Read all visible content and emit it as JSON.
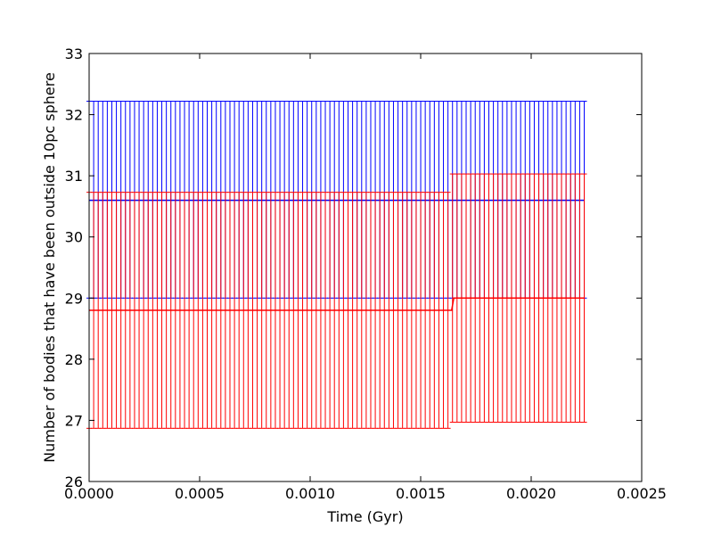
{
  "chart_data": {
    "type": "line",
    "title": "",
    "xlabel": "Time (Gyr)",
    "ylabel": "Number of bodies that have been outside 10pc sphere",
    "xlim": [
      0.0,
      0.0025
    ],
    "ylim": [
      26,
      33
    ],
    "xticks": [
      "0.0000",
      "0.0005",
      "0.0010",
      "0.0015",
      "0.0020",
      "0.0025"
    ],
    "yticks": [
      "26",
      "27",
      "28",
      "29",
      "30",
      "31",
      "32",
      "33"
    ],
    "grid": false,
    "legend": "none",
    "errorbar_caps": true,
    "series": [
      {
        "color": "#0000ff",
        "x": [
          0.0,
          0.00224
        ],
        "y": [
          30.6,
          30.6
        ],
        "errorbars": {
          "x_start": 0.0,
          "x_end": 0.00224,
          "count": 110,
          "segments": [
            {
              "x_from": 0.0,
              "x_to": 0.00224,
              "low": 29.0,
              "high": 32.22
            }
          ]
        }
      },
      {
        "color": "#ff0000",
        "x": [
          0.0,
          0.00164,
          0.00165,
          0.00224
        ],
        "y": [
          28.8,
          28.8,
          29.0,
          29.0
        ],
        "errorbars": {
          "x_start": 0.0,
          "x_end": 0.00224,
          "count": 110,
          "segments": [
            {
              "x_from": 0.0,
              "x_to": 0.00164,
              "low": 26.87,
              "high": 30.73
            },
            {
              "x_from": 0.00165,
              "x_to": 0.00224,
              "low": 26.97,
              "high": 31.03
            }
          ]
        }
      }
    ]
  }
}
